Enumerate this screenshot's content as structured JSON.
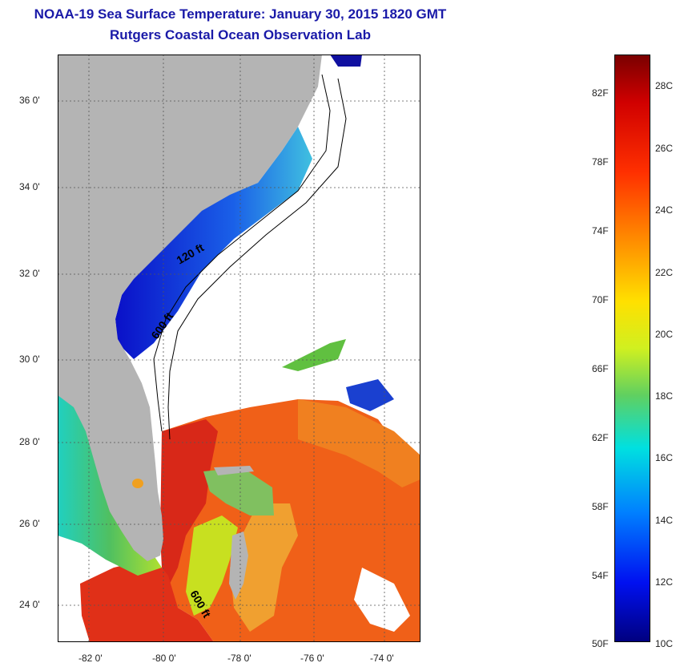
{
  "title": {
    "line1": "NOAA-19 Sea Surface Temperature:  January 30, 2015 1820 GMT",
    "line2": "Rutgers Coastal Ocean Observation Lab"
  },
  "map": {
    "lat_ticks": [
      "36 0'",
      "34 0'",
      "32 0'",
      "30 0'",
      "28 0'",
      "26 0'",
      "24 0'"
    ],
    "lon_ticks": [
      "-82 0'",
      "-80 0'",
      "-78 0'",
      "-76 0'",
      "-74 0'"
    ],
    "contour_labels": [
      "120 ft",
      "600 ft",
      "600 ft"
    ]
  },
  "colorbar": {
    "fahrenheit": [
      "82F",
      "78F",
      "74F",
      "70F",
      "66F",
      "62F",
      "58F",
      "54F",
      "50F"
    ],
    "celsius": [
      "28C",
      "26C",
      "24C",
      "22C",
      "20C",
      "18C",
      "16C",
      "14C",
      "12C",
      "10C"
    ]
  },
  "colors": {
    "land": "#b4b4b4",
    "title": "#1a1aa8",
    "cold": "#1010d0",
    "warm": "#e02010"
  }
}
